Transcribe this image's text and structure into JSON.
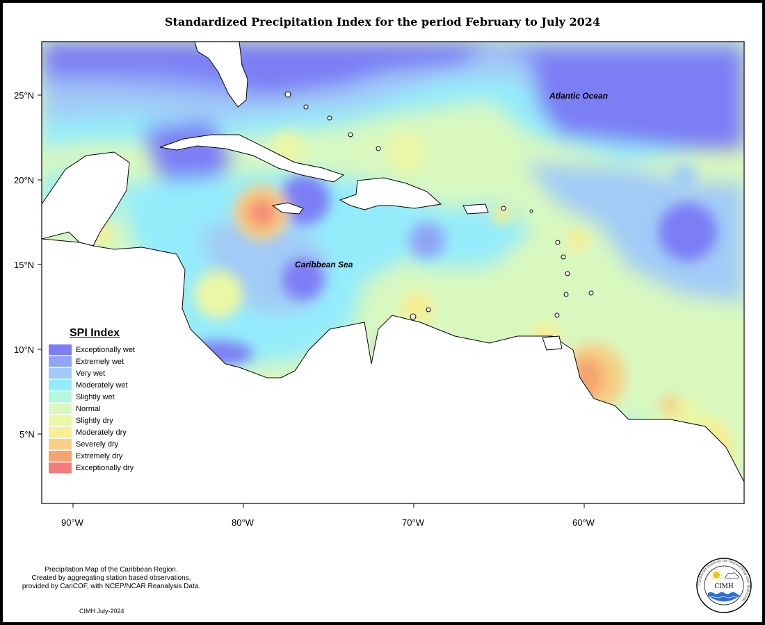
{
  "title": "Standardized Precipitation Index for the period February to July 2024",
  "axes": {
    "lat_ticks": [
      "25°N",
      "20°N",
      "15°N",
      "10°N",
      "5°N"
    ],
    "lon_ticks": [
      "90°W",
      "80°W",
      "70°W",
      "60°W"
    ]
  },
  "labels": {
    "atlantic": "Atlantic Ocean",
    "caribbean": "Caribbean Sea"
  },
  "legend": {
    "title": "SPI Index",
    "items": [
      {
        "label": "Exceptionally wet",
        "color": "#7b7ef5"
      },
      {
        "label": "Extremely wet",
        "color": "#8fa5f6"
      },
      {
        "label": "Very wet",
        "color": "#a2cbf7"
      },
      {
        "label": "Moderately wet",
        "color": "#94ecfb"
      },
      {
        "label": "Slightly wet",
        "color": "#b4f7df"
      },
      {
        "label": "Normal",
        "color": "#d8f8c0"
      },
      {
        "label": "Slightly dry",
        "color": "#eaf7a5"
      },
      {
        "label": "Moderately dry",
        "color": "#f6ef93"
      },
      {
        "label": "Severely dry",
        "color": "#f7cf85"
      },
      {
        "label": "Extremely dry",
        "color": "#f5a46f"
      },
      {
        "label": "Exceptionally dry",
        "color": "#f57a7a"
      }
    ]
  },
  "credit": {
    "line1": "Precipitation Map of the Caribbean Region.",
    "line2": "Created by aggregating station based observations,",
    "line3": "provided by CariCOF, with NCEP/NCAR Reanalysis Data."
  },
  "date_stamp": "CIMH July-2024",
  "logo": {
    "name": "CIMH",
    "ring_text": "Caribbean Institute for Meteorology and Hydrology"
  }
}
